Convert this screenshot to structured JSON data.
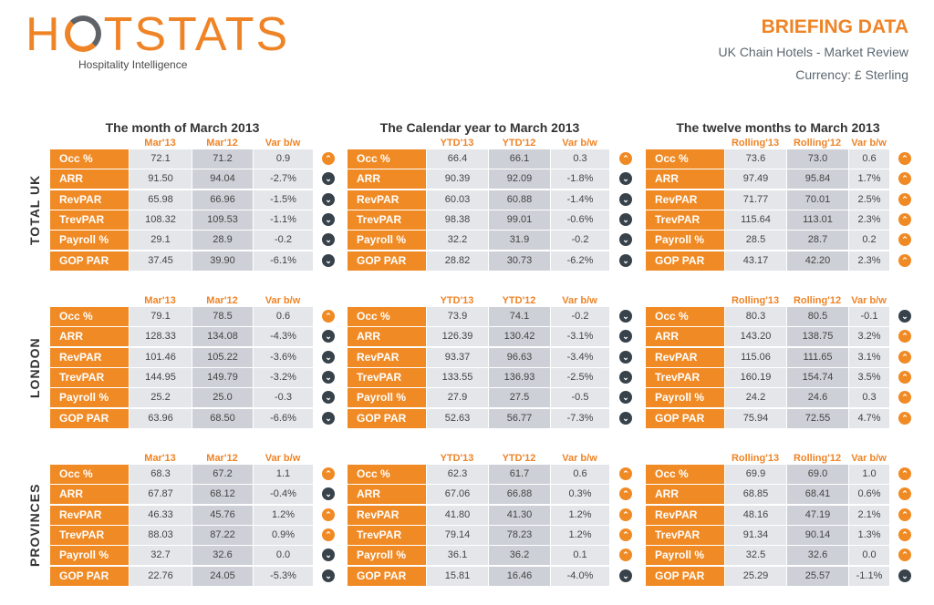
{
  "header": {
    "logo_text": "HOTSTATS",
    "tagline": "Hospitality Intelligence",
    "title": "BRIEFING DATA",
    "subtitle": "UK Chain Hotels - Market Review",
    "currency": "Currency: £ Sterling"
  },
  "colors": {
    "orange": "#f08a24",
    "dark": "#37424b"
  },
  "panel_titles": [
    "The month of March 2013",
    "The Calendar year to March 2013",
    "The twelve months to March 2013"
  ],
  "column_headers": [
    [
      "Mar'13",
      "Mar'12",
      "Var b/w"
    ],
    [
      "YTD'13",
      "YTD'12",
      "Var b/w"
    ],
    [
      "Rolling'13",
      "Rolling'12",
      "Var b/w"
    ]
  ],
  "metrics": [
    "Occ %",
    "ARR",
    "RevPAR",
    "TrevPAR",
    "Payroll %",
    "GOP PAR"
  ],
  "sections": [
    {
      "label": "TOTAL UK",
      "panels": [
        [
          [
            "72.1",
            "71.2",
            "0.9",
            "up"
          ],
          [
            "91.50",
            "94.04",
            "-2.7%",
            "down"
          ],
          [
            "65.98",
            "66.96",
            "-1.5%",
            "down"
          ],
          [
            "108.32",
            "109.53",
            "-1.1%",
            "down"
          ],
          [
            "29.1",
            "28.9",
            "-0.2",
            "down"
          ],
          [
            "37.45",
            "39.90",
            "-6.1%",
            "down"
          ]
        ],
        [
          [
            "66.4",
            "66.1",
            "0.3",
            "up"
          ],
          [
            "90.39",
            "92.09",
            "-1.8%",
            "down"
          ],
          [
            "60.03",
            "60.88",
            "-1.4%",
            "down"
          ],
          [
            "98.38",
            "99.01",
            "-0.6%",
            "down"
          ],
          [
            "32.2",
            "31.9",
            "-0.2",
            "down"
          ],
          [
            "28.82",
            "30.73",
            "-6.2%",
            "down"
          ]
        ],
        [
          [
            "73.6",
            "73.0",
            "0.6",
            "up"
          ],
          [
            "97.49",
            "95.84",
            "1.7%",
            "up"
          ],
          [
            "71.77",
            "70.01",
            "2.5%",
            "up"
          ],
          [
            "115.64",
            "113.01",
            "2.3%",
            "up"
          ],
          [
            "28.5",
            "28.7",
            "0.2",
            "up"
          ],
          [
            "43.17",
            "42.20",
            "2.3%",
            "up"
          ]
        ]
      ]
    },
    {
      "label": "LONDON",
      "panels": [
        [
          [
            "79.1",
            "78.5",
            "0.6",
            "up"
          ],
          [
            "128.33",
            "134.08",
            "-4.3%",
            "down"
          ],
          [
            "101.46",
            "105.22",
            "-3.6%",
            "down"
          ],
          [
            "144.95",
            "149.79",
            "-3.2%",
            "down"
          ],
          [
            "25.2",
            "25.0",
            "-0.3",
            "down"
          ],
          [
            "63.96",
            "68.50",
            "-6.6%",
            "down"
          ]
        ],
        [
          [
            "73.9",
            "74.1",
            "-0.2",
            "down"
          ],
          [
            "126.39",
            "130.42",
            "-3.1%",
            "down"
          ],
          [
            "93.37",
            "96.63",
            "-3.4%",
            "down"
          ],
          [
            "133.55",
            "136.93",
            "-2.5%",
            "down"
          ],
          [
            "27.9",
            "27.5",
            "-0.5",
            "down"
          ],
          [
            "52.63",
            "56.77",
            "-7.3%",
            "down"
          ]
        ],
        [
          [
            "80.3",
            "80.5",
            "-0.1",
            "down"
          ],
          [
            "143.20",
            "138.75",
            "3.2%",
            "up"
          ],
          [
            "115.06",
            "111.65",
            "3.1%",
            "up"
          ],
          [
            "160.19",
            "154.74",
            "3.5%",
            "up"
          ],
          [
            "24.2",
            "24.6",
            "0.3",
            "up"
          ],
          [
            "75.94",
            "72.55",
            "4.7%",
            "up"
          ]
        ]
      ]
    },
    {
      "label": "PROVINCES",
      "panels": [
        [
          [
            "68.3",
            "67.2",
            "1.1",
            "up"
          ],
          [
            "67.87",
            "68.12",
            "-0.4%",
            "down"
          ],
          [
            "46.33",
            "45.76",
            "1.2%",
            "up"
          ],
          [
            "88.03",
            "87.22",
            "0.9%",
            "up"
          ],
          [
            "32.7",
            "32.6",
            "0.0",
            "down"
          ],
          [
            "22.76",
            "24.05",
            "-5.3%",
            "down"
          ]
        ],
        [
          [
            "62.3",
            "61.7",
            "0.6",
            "up"
          ],
          [
            "67.06",
            "66.88",
            "0.3%",
            "up"
          ],
          [
            "41.80",
            "41.30",
            "1.2%",
            "up"
          ],
          [
            "79.14",
            "78.23",
            "1.2%",
            "up"
          ],
          [
            "36.1",
            "36.2",
            "0.1",
            "up"
          ],
          [
            "15.81",
            "16.46",
            "-4.0%",
            "down"
          ]
        ],
        [
          [
            "69.9",
            "69.0",
            "1.0",
            "up"
          ],
          [
            "68.85",
            "68.41",
            "0.6%",
            "up"
          ],
          [
            "48.16",
            "47.19",
            "2.1%",
            "up"
          ],
          [
            "91.34",
            "90.14",
            "1.3%",
            "up"
          ],
          [
            "32.5",
            "32.6",
            "0.0",
            "up"
          ],
          [
            "25.29",
            "25.57",
            "-1.1%",
            "down"
          ]
        ]
      ]
    }
  ]
}
